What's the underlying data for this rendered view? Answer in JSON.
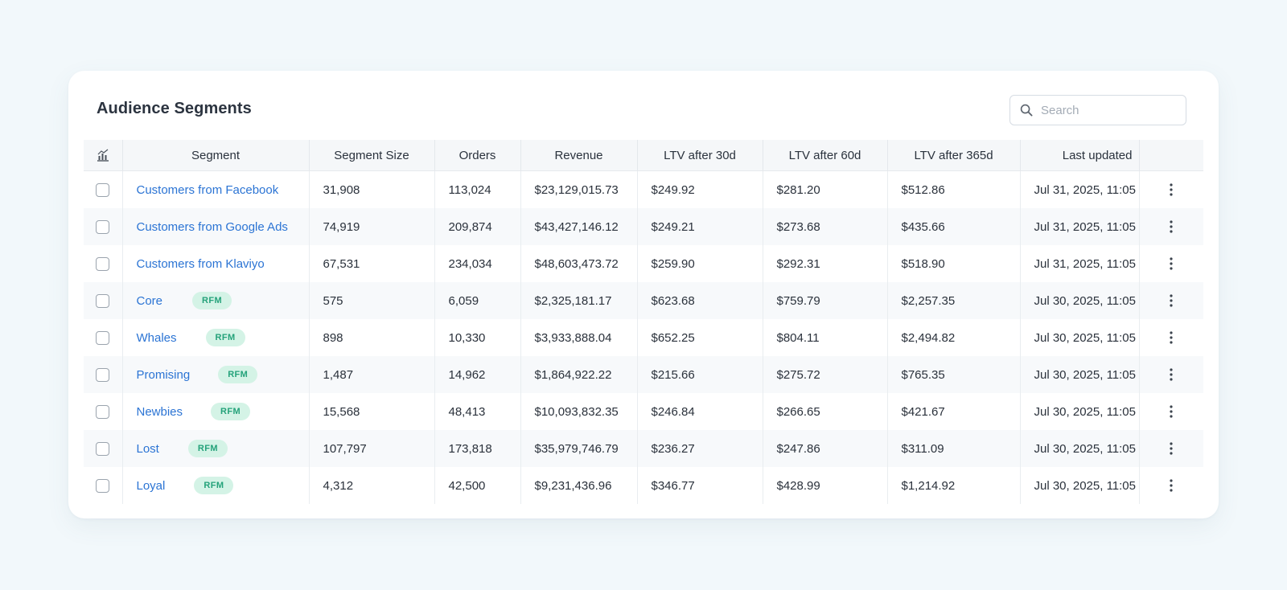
{
  "title": "Audience Segments",
  "search": {
    "placeholder": "Search",
    "value": ""
  },
  "icons": {
    "header_icon": "bar-chart-icon",
    "search": "search-icon",
    "row_menu": "more-vertical-icon"
  },
  "colors": {
    "link": "#2b74d4",
    "badge_bg": "#d4f3e6",
    "badge_text": "#24a27a"
  },
  "columns": [
    "Segment",
    "Segment Size",
    "Orders",
    "Revenue",
    "LTV after 30d",
    "LTV after 60d",
    "LTV after 365d",
    "Last updated"
  ],
  "rows": [
    {
      "segment": "Customers from Facebook",
      "badge": "",
      "size": "31,908",
      "orders": "113,024",
      "revenue": "$23,129,015.73",
      "ltv30": "$249.92",
      "ltv60": "$281.20",
      "ltv365": "$512.86",
      "updated": "Jul 31, 2025, 11:05"
    },
    {
      "segment": "Customers from Google Ads",
      "badge": "",
      "size": "74,919",
      "orders": "209,874",
      "revenue": "$43,427,146.12",
      "ltv30": "$249.21",
      "ltv60": "$273.68",
      "ltv365": "$435.66",
      "updated": "Jul 31, 2025, 11:05"
    },
    {
      "segment": "Customers from Klaviyo",
      "badge": "",
      "size": "67,531",
      "orders": "234,034",
      "revenue": "$48,603,473.72",
      "ltv30": "$259.90",
      "ltv60": "$292.31",
      "ltv365": "$518.90",
      "updated": "Jul 31, 2025, 11:05"
    },
    {
      "segment": "Core",
      "badge": "RFM",
      "size": "575",
      "orders": "6,059",
      "revenue": "$2,325,181.17",
      "ltv30": "$623.68",
      "ltv60": "$759.79",
      "ltv365": "$2,257.35",
      "updated": "Jul 30, 2025, 11:05"
    },
    {
      "segment": "Whales",
      "badge": "RFM",
      "size": "898",
      "orders": "10,330",
      "revenue": "$3,933,888.04",
      "ltv30": "$652.25",
      "ltv60": "$804.11",
      "ltv365": "$2,494.82",
      "updated": "Jul 30, 2025, 11:05"
    },
    {
      "segment": "Promising",
      "badge": "RFM",
      "size": "1,487",
      "orders": "14,962",
      "revenue": "$1,864,922.22",
      "ltv30": "$215.66",
      "ltv60": "$275.72",
      "ltv365": "$765.35",
      "updated": "Jul 30, 2025, 11:05"
    },
    {
      "segment": "Newbies",
      "badge": "RFM",
      "size": "15,568",
      "orders": "48,413",
      "revenue": "$10,093,832.35",
      "ltv30": "$246.84",
      "ltv60": "$266.65",
      "ltv365": "$421.67",
      "updated": "Jul 30, 2025, 11:05"
    },
    {
      "segment": "Lost",
      "badge": "RFM",
      "size": "107,797",
      "orders": "173,818",
      "revenue": "$35,979,746.79",
      "ltv30": "$236.27",
      "ltv60": "$247.86",
      "ltv365": "$311.09",
      "updated": "Jul 30, 2025, 11:05"
    },
    {
      "segment": "Loyal",
      "badge": "RFM",
      "size": "4,312",
      "orders": "42,500",
      "revenue": "$9,231,436.96",
      "ltv30": "$346.77",
      "ltv60": "$428.99",
      "ltv365": "$1,214.92",
      "updated": "Jul 30, 2025, 11:05"
    }
  ]
}
